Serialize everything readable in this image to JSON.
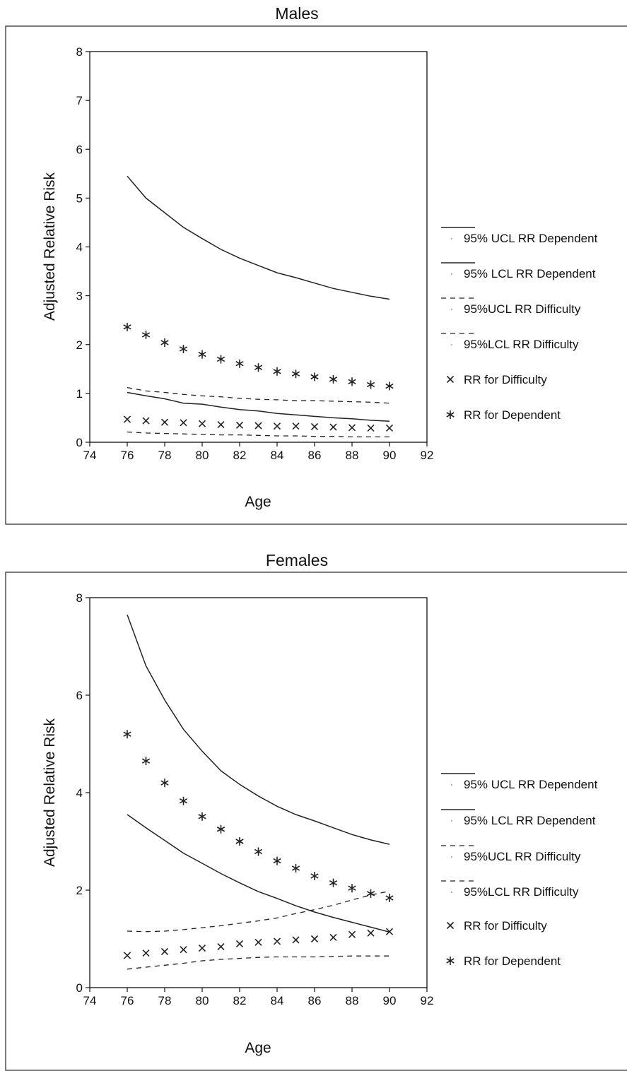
{
  "chart_data": [
    {
      "type": "line",
      "title": "Males",
      "xlabel": "Age",
      "ylabel": "Adjusted Relative Risk",
      "xlim": [
        74,
        92
      ],
      "ylim": [
        0,
        8
      ],
      "xticks": [
        "74",
        "76",
        "78",
        "80",
        "82",
        "84",
        "86",
        "88",
        "90",
        "92"
      ],
      "yticks": [
        "0",
        "1",
        "2",
        "3",
        "4",
        "5",
        "6",
        "7",
        "8"
      ],
      "legend_position": "right",
      "x": [
        76,
        77,
        78,
        79,
        80,
        81,
        82,
        83,
        84,
        85,
        86,
        87,
        88,
        89,
        90
      ],
      "series": [
        {
          "name": "95% UCL RR Dependent",
          "style": "solid",
          "values": [
            5.45,
            5.0,
            4.7,
            4.4,
            4.17,
            3.95,
            3.77,
            3.62,
            3.47,
            3.37,
            3.26,
            3.15,
            3.07,
            2.99,
            2.93
          ]
        },
        {
          "name": "95% LCL RR Dependent",
          "style": "solid",
          "values": [
            1.02,
            0.95,
            0.89,
            0.8,
            0.78,
            0.72,
            0.67,
            0.64,
            0.59,
            0.56,
            0.53,
            0.5,
            0.48,
            0.45,
            0.43
          ]
        },
        {
          "name": "95%UCL RR Difficulty",
          "style": "dashed",
          "values": [
            1.12,
            1.05,
            1.02,
            0.98,
            0.95,
            0.93,
            0.9,
            0.88,
            0.87,
            0.85,
            0.85,
            0.84,
            0.83,
            0.82,
            0.8
          ]
        },
        {
          "name": "95%LCL RR Difficulty",
          "style": "dashed",
          "values": [
            0.21,
            0.19,
            0.18,
            0.17,
            0.16,
            0.15,
            0.15,
            0.14,
            0.13,
            0.13,
            0.12,
            0.12,
            0.11,
            0.11,
            0.11
          ]
        },
        {
          "name": "RR for Difficulty",
          "style": "x",
          "values": [
            0.47,
            0.44,
            0.41,
            0.4,
            0.38,
            0.36,
            0.35,
            0.34,
            0.33,
            0.33,
            0.32,
            0.31,
            0.3,
            0.29,
            0.29
          ]
        },
        {
          "name": "RR for Dependent",
          "style": "star",
          "values": [
            2.36,
            2.2,
            2.04,
            1.91,
            1.8,
            1.7,
            1.61,
            1.53,
            1.45,
            1.4,
            1.34,
            1.29,
            1.24,
            1.18,
            1.15
          ]
        }
      ]
    },
    {
      "type": "line",
      "title": "Females",
      "xlabel": "Age",
      "ylabel": "Adjusted Relative Risk",
      "xlim": [
        74,
        92
      ],
      "ylim": [
        0,
        8
      ],
      "xticks": [
        "74",
        "76",
        "78",
        "80",
        "82",
        "84",
        "86",
        "88",
        "90",
        "92"
      ],
      "yticks": [
        "0",
        "2",
        "4",
        "6",
        "8"
      ],
      "legend_position": "right",
      "x": [
        76,
        77,
        78,
        79,
        80,
        81,
        82,
        83,
        84,
        85,
        86,
        87,
        88,
        89,
        90
      ],
      "series": [
        {
          "name": "95% UCL RR Dependent",
          "style": "solid",
          "values": [
            7.65,
            6.6,
            5.9,
            5.3,
            4.85,
            4.45,
            4.17,
            3.93,
            3.72,
            3.55,
            3.42,
            3.28,
            3.14,
            3.03,
            2.94
          ]
        },
        {
          "name": "95% LCL RR Dependent",
          "style": "solid",
          "values": [
            3.55,
            3.28,
            3.02,
            2.76,
            2.55,
            2.34,
            2.15,
            1.97,
            1.83,
            1.68,
            1.55,
            1.44,
            1.34,
            1.24,
            1.14
          ]
        },
        {
          "name": "95%UCL RR Difficulty",
          "style": "dashed",
          "values": [
            1.16,
            1.15,
            1.16,
            1.19,
            1.23,
            1.27,
            1.32,
            1.37,
            1.43,
            1.52,
            1.6,
            1.69,
            1.8,
            1.9,
            1.98
          ]
        },
        {
          "name": "95%LCL RR Difficulty",
          "style": "dashed",
          "values": [
            0.38,
            0.42,
            0.46,
            0.5,
            0.55,
            0.58,
            0.6,
            0.62,
            0.63,
            0.63,
            0.63,
            0.64,
            0.65,
            0.65,
            0.65
          ]
        },
        {
          "name": "RR for Difficulty",
          "style": "x",
          "values": [
            0.66,
            0.71,
            0.74,
            0.78,
            0.81,
            0.84,
            0.9,
            0.93,
            0.95,
            0.98,
            1.0,
            1.03,
            1.09,
            1.12,
            1.15
          ]
        },
        {
          "name": "RR for Dependent",
          "style": "star",
          "values": [
            5.2,
            4.65,
            4.2,
            3.83,
            3.51,
            3.25,
            3.0,
            2.79,
            2.6,
            2.45,
            2.29,
            2.15,
            2.04,
            1.93,
            1.84
          ]
        }
      ]
    }
  ]
}
